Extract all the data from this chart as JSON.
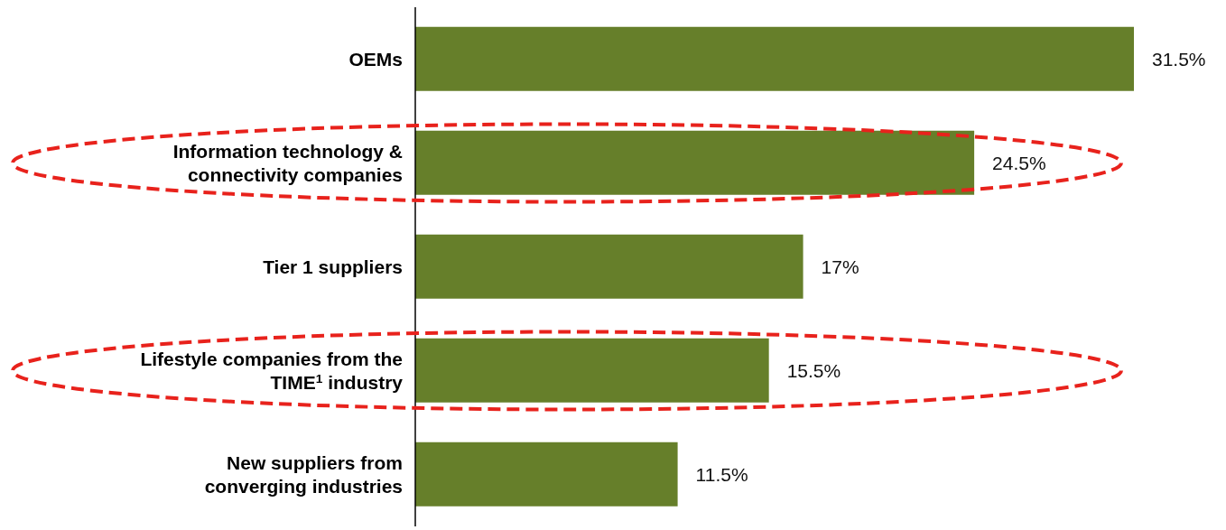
{
  "chart_data": {
    "type": "bar",
    "orientation": "horizontal",
    "categories": [
      "OEMs",
      "Information technology & connectivity companies",
      "Tier 1 suppliers",
      "Lifestyle companies from the TIME$^{1}$ industry",
      "New suppliers from converging industries"
    ],
    "values": [
      31.5,
      24.5,
      17,
      15.5,
      11.5
    ],
    "value_labels": [
      "31.5%",
      "24.5%",
      "17%",
      "15.5%",
      "11.5%"
    ],
    "color": "#667f2a",
    "grid": false,
    "legend": false
  }
}
